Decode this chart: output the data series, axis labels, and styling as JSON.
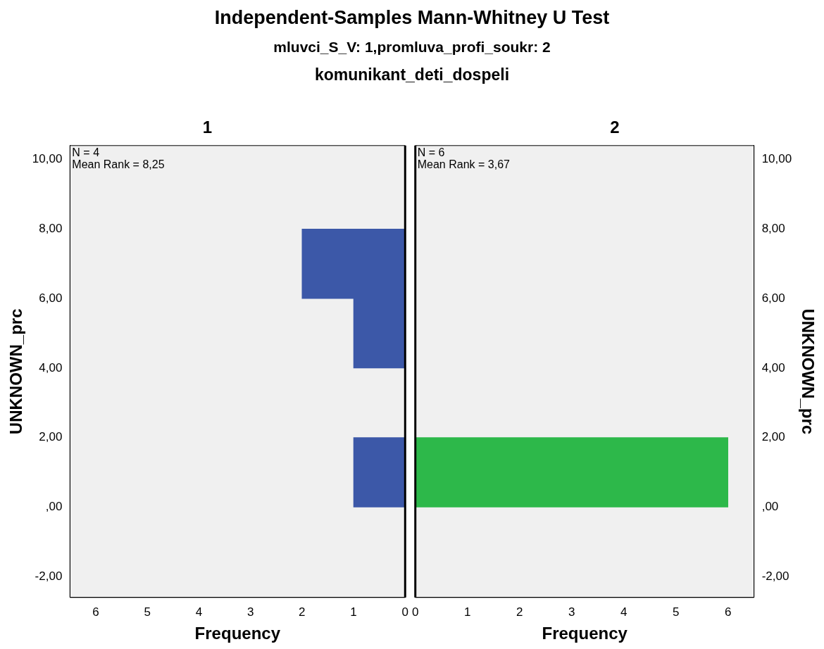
{
  "chart_data": [
    {
      "type": "other",
      "title": "Independent-Samples Mann-Whitney U Test",
      "subtitle": "mluvci_S_V: 1,promluva_profi_soukr: 2",
      "annotations": [
        "komunikant_deti_dospeli"
      ]
    },
    {
      "type": "histogram",
      "orientation": "horizontal",
      "title": "1",
      "bins": [
        0,
        2,
        4,
        6,
        8
      ],
      "values": [
        1,
        0,
        1,
        2
      ],
      "color": "#3c58a8",
      "xlim": [
        6.5,
        0
      ],
      "xticks": [
        6,
        5,
        4,
        3,
        2,
        1,
        0
      ],
      "ylim": [
        -2.6,
        10.4
      ],
      "yticks": [
        {
          "value": -2,
          "label": "-2,00"
        },
        {
          "value": 0,
          "label": ",00"
        },
        {
          "value": 2,
          "label": "2,00"
        },
        {
          "value": 4,
          "label": "4,00"
        },
        {
          "value": 6,
          "label": "6,00"
        },
        {
          "value": 8,
          "label": "8,00"
        },
        {
          "value": 10,
          "label": "10,00"
        }
      ],
      "xlabel": "Frequency",
      "ylabel": "UNKNOWN_prc",
      "annotations": [
        "N = 4",
        "Mean Rank = 8,25"
      ],
      "grid": false,
      "legend": false
    },
    {
      "type": "histogram",
      "orientation": "horizontal",
      "title": "2",
      "bins": [
        0,
        2,
        4,
        6,
        8
      ],
      "values": [
        6,
        0,
        0,
        0
      ],
      "color": "#2db84a",
      "xlim": [
        0,
        6.5
      ],
      "xticks": [
        0,
        1,
        2,
        3,
        4,
        5,
        6
      ],
      "ylim": [
        -2.6,
        10.4
      ],
      "yticks": [
        {
          "value": -2,
          "label": "-2,00"
        },
        {
          "value": 0,
          "label": ",00"
        },
        {
          "value": 2,
          "label": "2,00"
        },
        {
          "value": 4,
          "label": "4,00"
        },
        {
          "value": 6,
          "label": "6,00"
        },
        {
          "value": 8,
          "label": "8,00"
        },
        {
          "value": 10,
          "label": "10,00"
        }
      ],
      "xlabel": "Frequency",
      "ylabel": "UNKNOWN_prc",
      "annotations": [
        "N = 6",
        "Mean Rank = 3,67"
      ],
      "grid": false,
      "legend": false
    }
  ]
}
